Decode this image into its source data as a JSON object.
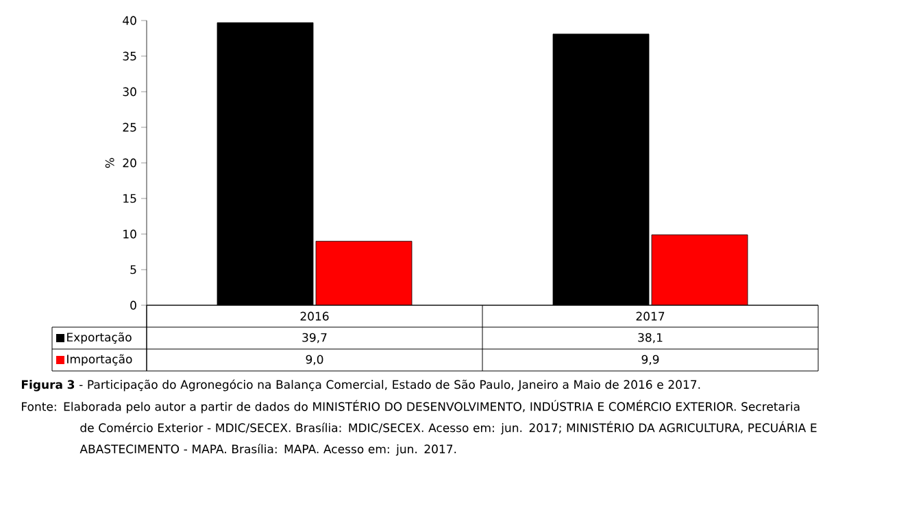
{
  "chart_data": {
    "type": "bar",
    "ylabel": "%",
    "categories": [
      "2016",
      "2017"
    ],
    "series": [
      {
        "name": "Exportação",
        "color": "#000000",
        "values": [
          39.7,
          38.1
        ],
        "value_labels": [
          "39,7",
          "38,1"
        ]
      },
      {
        "name": "Importação",
        "color": "#ff0000",
        "values": [
          9.0,
          9.9
        ],
        "value_labels": [
          "9,0",
          "9,9"
        ]
      }
    ],
    "ylim": [
      0,
      40
    ],
    "yticks": [
      0,
      5,
      10,
      15,
      20,
      25,
      30,
      35,
      40
    ],
    "legend": "bottom",
    "grid": false,
    "annotations": [
      "**Figura 3** - Participação do Agronegócio na Balança Comercial, Estado de São Paulo, Janeiro a Maio de 2016 e 2017.",
      "Fonte: Elaborada pelo autor a partir de dados do MINISTÉRIO DO DESENVOLVIMENTO, INDÚSTRIA E COMÉRCIO EXTERIOR. Secretaria de Comércio Exterior - MDIC/SECEX. Brasília: MDIC/SECEX. Acesso em: jun. 2017; MINISTÉRIO DA AGRICULTURA, PECUÁRIA E ABASTECIMENTO - MAPA. Brasília: MAPA. Acesso em: jun. 2017."
    ]
  }
}
